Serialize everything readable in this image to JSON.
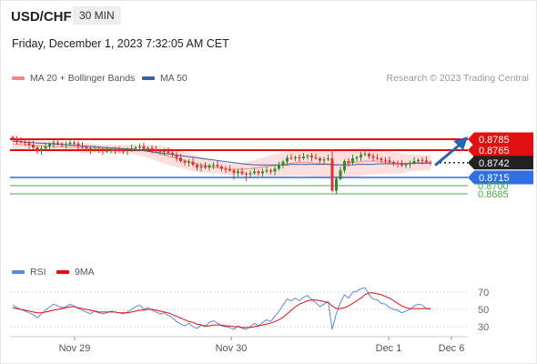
{
  "header": {
    "symbol": "USD/CHF",
    "timeframe": "30 MIN",
    "timestamp": "Friday, December 1, 2023 7:32:05 AM CET"
  },
  "legend": {
    "ma20_label": "MA 20 + Bollinger Bands",
    "ma50_label": "MA 50",
    "credit": "Research © 2023 Trading Central",
    "rsi_label": "RSI",
    "ma9_label": "9MA"
  },
  "colors": {
    "bullish": "#2e8b2e",
    "bearish": "#e03030",
    "ma20": "#f08a82",
    "bollinger_fill": "#fde0de",
    "ma50": "#3c5fa8",
    "resistance": "#e01010",
    "support_blue": "#2f6fe0",
    "support_green": "#4aa84a",
    "arrow": "#2a64b0",
    "rsi": "#5b8ad6",
    "rsi_ma9": "#e01010"
  },
  "chart_data": [
    {
      "type": "candlestick",
      "x_ticks": [
        "Nov 29",
        "Nov 30",
        "Dec 1",
        "Dec 6"
      ],
      "price_levels": [
        {
          "label": "0.8785",
          "value": 0.8785,
          "style": "resistance"
        },
        {
          "label": "0.8765",
          "value": 0.8765,
          "style": "resistance"
        },
        {
          "label": "0.8742",
          "value": 0.8742,
          "style": "last_price"
        },
        {
          "label": "0.8715",
          "value": 0.8715,
          "style": "support_blue"
        },
        {
          "label": "0.8700",
          "value": 0.87,
          "style": "support_green"
        },
        {
          "label": "0.8685",
          "value": 0.8685,
          "style": "support_green"
        }
      ],
      "close": [
        0.8786,
        0.8782,
        0.878,
        0.8778,
        0.8775,
        0.877,
        0.8763,
        0.8768,
        0.8772,
        0.8776,
        0.8779,
        0.8777,
        0.8775,
        0.8776,
        0.8779,
        0.8777,
        0.8773,
        0.8771,
        0.8768,
        0.8765,
        0.8767,
        0.8765,
        0.8763,
        0.8764,
        0.8766,
        0.8765,
        0.8764,
        0.8763,
        0.8765,
        0.8768,
        0.877,
        0.8772,
        0.8767,
        0.8769,
        0.8766,
        0.8764,
        0.8762,
        0.8763,
        0.876,
        0.8757,
        0.8751,
        0.8745,
        0.8742,
        0.8744,
        0.8738,
        0.8733,
        0.8736,
        0.8733,
        0.8737,
        0.8738,
        0.8735,
        0.8731,
        0.873,
        0.8728,
        0.8723,
        0.8726,
        0.8722,
        0.8721,
        0.8723,
        0.8726,
        0.8723,
        0.8726,
        0.8728,
        0.8726,
        0.8731,
        0.8737,
        0.8744,
        0.8751,
        0.875,
        0.8752,
        0.875,
        0.8753,
        0.8755,
        0.8752,
        0.875,
        0.8746,
        0.8748,
        0.875,
        0.8691,
        0.8712,
        0.8728,
        0.8745,
        0.8742,
        0.875,
        0.8752,
        0.8757,
        0.8758,
        0.8754,
        0.8751,
        0.875,
        0.8747,
        0.8746,
        0.8743,
        0.8741,
        0.874,
        0.8737,
        0.8739,
        0.8741,
        0.8745,
        0.8747,
        0.8746,
        0.8743,
        0.8742
      ],
      "ma20": [
        0.8776,
        0.8776,
        0.8775,
        0.8775,
        0.8774,
        0.8774,
        0.8773,
        0.8773,
        0.8772,
        0.8772,
        0.8772,
        0.8771,
        0.8771,
        0.8771,
        0.877,
        0.877,
        0.877,
        0.8769,
        0.8769,
        0.8769,
        0.8768,
        0.8768,
        0.8768,
        0.8768,
        0.8767,
        0.8767,
        0.8767,
        0.8767,
        0.8767,
        0.8767,
        0.8766,
        0.8765,
        0.8764,
        0.8763,
        0.8761,
        0.876,
        0.8758,
        0.8756,
        0.8754,
        0.8752,
        0.875,
        0.8748,
        0.8746,
        0.8744,
        0.8742,
        0.874,
        0.8738,
        0.8737,
        0.8735,
        0.8734,
        0.8733,
        0.8732,
        0.8731,
        0.873,
        0.873,
        0.873,
        0.873,
        0.8731,
        0.8731,
        0.8732,
        0.8733,
        0.8734,
        0.8735,
        0.8736,
        0.8737,
        0.8738,
        0.8739,
        0.874,
        0.8741,
        0.8742,
        0.8743,
        0.8743,
        0.8743,
        0.8742,
        0.8741,
        0.874,
        0.874,
        0.874,
        0.8739,
        0.8739,
        0.8738,
        0.874,
        0.8741,
        0.8742,
        0.8743,
        0.8744,
        0.8745,
        0.8745,
        0.8745,
        0.8745,
        0.8744,
        0.8743,
        0.8742,
        0.8742,
        0.8741,
        0.8741,
        0.8741,
        0.8742,
        0.8742,
        0.8742,
        0.8742,
        0.8742,
        0.8742
      ],
      "ma50": [
        0.8781,
        0.8781,
        0.878,
        0.878,
        0.8779,
        0.8779,
        0.8778,
        0.8778,
        0.8777,
        0.8777,
        0.8776,
        0.8776,
        0.8775,
        0.8775,
        0.8774,
        0.8774,
        0.8773,
        0.8773,
        0.8772,
        0.8772,
        0.8771,
        0.8771,
        0.877,
        0.877,
        0.8769,
        0.8769,
        0.8768,
        0.8768,
        0.8767,
        0.8767,
        0.8766,
        0.8765,
        0.8764,
        0.8763,
        0.8762,
        0.8761,
        0.876,
        0.8759,
        0.8758,
        0.8757,
        0.8756,
        0.8755,
        0.8754,
        0.8753,
        0.8752,
        0.8751,
        0.875,
        0.8749,
        0.8748,
        0.8747,
        0.8746,
        0.8745,
        0.8744,
        0.8743,
        0.8742,
        0.8741,
        0.874,
        0.8739,
        0.8739,
        0.8738,
        0.8738,
        0.8738,
        0.8738,
        0.8738,
        0.8738,
        0.8738,
        0.8738,
        0.8738,
        0.8739,
        0.8739,
        0.8739,
        0.8739,
        0.8739,
        0.8739,
        0.8739,
        0.8739,
        0.8739,
        0.8739,
        0.8738,
        0.8738,
        0.8738,
        0.8738,
        0.8738,
        0.8738,
        0.8739,
        0.8739,
        0.8739,
        0.8739,
        0.8739,
        0.874,
        0.874,
        0.874,
        0.874,
        0.874,
        0.874,
        0.874,
        0.874,
        0.874,
        0.8741,
        0.8741,
        0.8741,
        0.8741,
        0.8741
      ],
      "band_width": [
        0.001,
        0.001,
        0.001,
        0.001,
        0.001,
        0.001,
        0.001,
        0.001,
        0.001,
        0.001,
        0.0009,
        0.0009,
        0.0009,
        0.0009,
        0.0009,
        0.0009,
        0.0009,
        0.0009,
        0.0009,
        0.0009,
        0.0008,
        0.0008,
        0.0008,
        0.0008,
        0.0008,
        0.0008,
        0.0008,
        0.0008,
        0.0008,
        0.0008,
        0.0009,
        0.001,
        0.0011,
        0.0012,
        0.0013,
        0.0014,
        0.0015,
        0.0016,
        0.0016,
        0.0016,
        0.0016,
        0.0016,
        0.0016,
        0.0016,
        0.0016,
        0.0015,
        0.0014,
        0.0013,
        0.0012,
        0.0012,
        0.0011,
        0.0011,
        0.0011,
        0.0011,
        0.0011,
        0.0011,
        0.0012,
        0.0013,
        0.0014,
        0.0015,
        0.0016,
        0.0017,
        0.0018,
        0.0019,
        0.002,
        0.0021,
        0.0022,
        0.0023,
        0.0024,
        0.0024,
        0.0025,
        0.0025,
        0.0025,
        0.0026,
        0.0026,
        0.0026,
        0.0026,
        0.0026,
        0.0027,
        0.0027,
        0.0027,
        0.0027,
        0.0027,
        0.0027,
        0.0026,
        0.0026,
        0.0025,
        0.0025,
        0.0024,
        0.0024,
        0.0023,
        0.0022,
        0.0021,
        0.002,
        0.0019,
        0.0018,
        0.0017,
        0.0016,
        0.0015,
        0.0015,
        0.0014,
        0.0014,
        0.0014
      ],
      "projection_target": 0.8785
    },
    {
      "type": "line",
      "series": [
        {
          "name": "RSI",
          "values": [
            55,
            52,
            50,
            48,
            46,
            44,
            40,
            45,
            49,
            53,
            56,
            54,
            52,
            53,
            56,
            54,
            51,
            49,
            47,
            45,
            48,
            46,
            45,
            46,
            48,
            47,
            46,
            45,
            47,
            50,
            53,
            55,
            50,
            52,
            49,
            47,
            45,
            46,
            43,
            40,
            36,
            33,
            31,
            34,
            30,
            28,
            32,
            30,
            35,
            37,
            34,
            31,
            30,
            29,
            27,
            31,
            28,
            27,
            30,
            34,
            31,
            35,
            38,
            36,
            42,
            48,
            55,
            62,
            60,
            63,
            60,
            64,
            66,
            61,
            58,
            53,
            56,
            59,
            27,
            45,
            58,
            67,
            63,
            70,
            71,
            74,
            75,
            67,
            62,
            61,
            57,
            56,
            52,
            50,
            49,
            46,
            48,
            50,
            54,
            56,
            55,
            51,
            50
          ]
        },
        {
          "name": "9MA",
          "values": [
            52,
            51,
            50,
            49,
            48,
            47,
            46,
            46,
            47,
            48,
            49,
            50,
            51,
            52,
            53,
            53,
            52,
            51,
            50,
            49,
            48,
            47,
            47,
            47,
            47,
            47,
            46,
            46,
            46,
            47,
            48,
            49,
            49,
            50,
            50,
            49,
            48,
            47,
            46,
            44,
            42,
            40,
            38,
            36,
            35,
            33,
            32,
            31,
            31,
            32,
            32,
            32,
            31,
            31,
            30,
            30,
            29,
            29,
            29,
            30,
            31,
            32,
            33,
            34,
            36,
            38,
            41,
            45,
            49,
            53,
            56,
            58,
            60,
            61,
            61,
            60,
            59,
            58,
            54,
            51,
            51,
            52,
            54,
            57,
            60,
            63,
            67,
            69,
            69,
            68,
            67,
            65,
            63,
            60,
            57,
            54,
            52,
            51,
            51,
            51,
            51,
            51,
            51
          ]
        }
      ],
      "x_ticks": [
        "Nov 29",
        "Nov 30",
        "Dec 1",
        "Dec 6"
      ],
      "ylim": [
        20,
        80
      ],
      "y_ticks": [
        "70",
        "50",
        "30"
      ]
    }
  ]
}
